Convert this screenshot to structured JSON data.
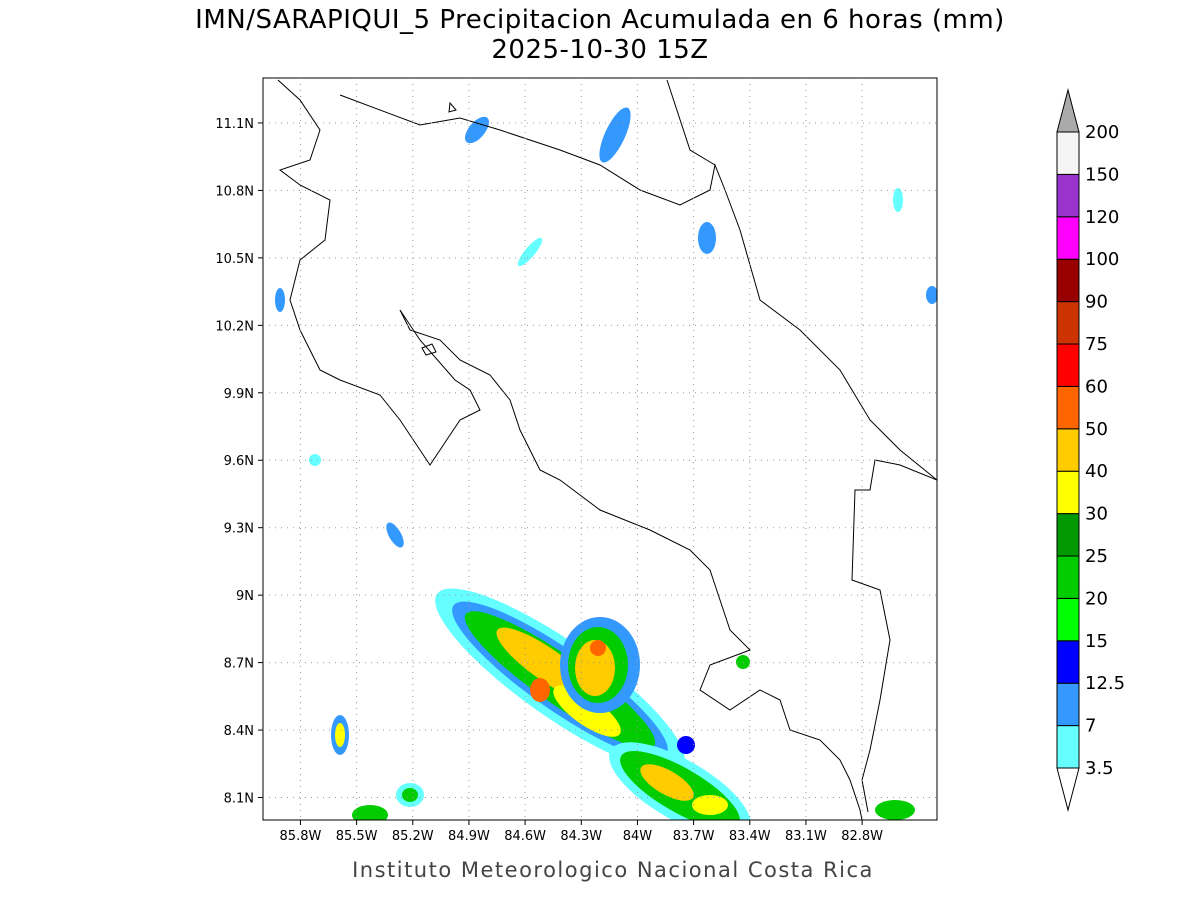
{
  "map": {
    "title": "IMN/SARAPIQUI_5 Precipitacion Acumulada en 6 horas (mm)",
    "subtitle": "2025-10-30 15Z",
    "footer": "Instituto Meteorologico Nacional Costa Rica",
    "xlim": [
      -86.0,
      -82.4
    ],
    "ylim": [
      8.0,
      11.3
    ],
    "xticks": [
      {
        "value": -85.8,
        "label": "85.8W"
      },
      {
        "value": -85.5,
        "label": "85.5W"
      },
      {
        "value": -85.2,
        "label": "85.2W"
      },
      {
        "value": -84.9,
        "label": "84.9W"
      },
      {
        "value": -84.6,
        "label": "84.6W"
      },
      {
        "value": -84.3,
        "label": "84.3W"
      },
      {
        "value": -84.0,
        "label": "84W"
      },
      {
        "value": -83.7,
        "label": "83.7W"
      },
      {
        "value": -83.4,
        "label": "83.4W"
      },
      {
        "value": -83.1,
        "label": "83.1W"
      },
      {
        "value": -82.8,
        "label": "82.8W"
      }
    ],
    "yticks": [
      {
        "value": 8.1,
        "label": "8.1N"
      },
      {
        "value": 8.4,
        "label": "8.4N"
      },
      {
        "value": 8.7,
        "label": "8.7N"
      },
      {
        "value": 9.0,
        "label": "9N"
      },
      {
        "value": 9.3,
        "label": "9.3N"
      },
      {
        "value": 9.6,
        "label": "9.6N"
      },
      {
        "value": 9.9,
        "label": "9.9N"
      },
      {
        "value": 10.2,
        "label": "10.2N"
      },
      {
        "value": 10.5,
        "label": "10.5N"
      },
      {
        "value": 10.8,
        "label": "10.8N"
      },
      {
        "value": 11.1,
        "label": "11.1N"
      }
    ],
    "grid": true,
    "colorbar": {
      "levels": [
        3.5,
        7,
        12.5,
        15,
        20,
        25,
        30,
        40,
        50,
        60,
        75,
        90,
        100,
        120,
        150,
        200
      ],
      "colors": [
        "#66ffff",
        "#3399ff",
        "#0000ff",
        "#00ff00",
        "#00cc00",
        "#009900",
        "#ffff00",
        "#ffcc00",
        "#ff6600",
        "#ff0000",
        "#cc3300",
        "#990000",
        "#ff00ff",
        "#9933cc",
        "#f5f5f5"
      ],
      "under_color": "#ffffff",
      "over_color": "#aaaaaa"
    }
  }
}
